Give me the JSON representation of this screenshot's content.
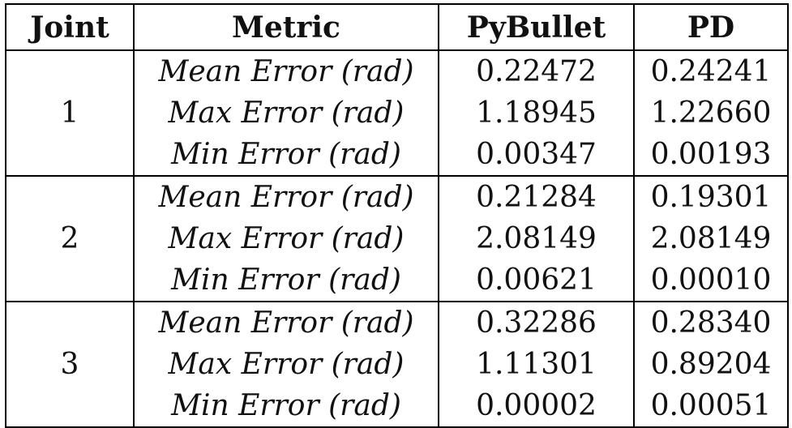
{
  "chart_data": {
    "type": "table",
    "columns": [
      "Joint",
      "Metric",
      "PyBullet",
      "PD"
    ],
    "groups": [
      {
        "joint": "1",
        "rows": [
          {
            "metric": "Mean Error (rad)",
            "pybullet": "0.22472",
            "pd": "0.24241"
          },
          {
            "metric": "Max Error (rad)",
            "pybullet": "1.18945",
            "pd": "1.22660"
          },
          {
            "metric": "Min Error (rad)",
            "pybullet": "0.00347",
            "pd": "0.00193"
          }
        ]
      },
      {
        "joint": "2",
        "rows": [
          {
            "metric": "Mean Error (rad)",
            "pybullet": "0.21284",
            "pd": "0.19301"
          },
          {
            "metric": "Max Error (rad)",
            "pybullet": "2.08149",
            "pd": "2.08149"
          },
          {
            "metric": "Min Error (rad)",
            "pybullet": "0.00621",
            "pd": "0.00010"
          }
        ]
      },
      {
        "joint": "3",
        "rows": [
          {
            "metric": "Mean Error (rad)",
            "pybullet": "0.32286",
            "pd": "0.28340"
          },
          {
            "metric": "Max Error (rad)",
            "pybullet": "1.11301",
            "pd": "0.89204"
          },
          {
            "metric": "Min Error (rad)",
            "pybullet": "0.00002",
            "pd": "0.00051"
          }
        ]
      }
    ]
  }
}
